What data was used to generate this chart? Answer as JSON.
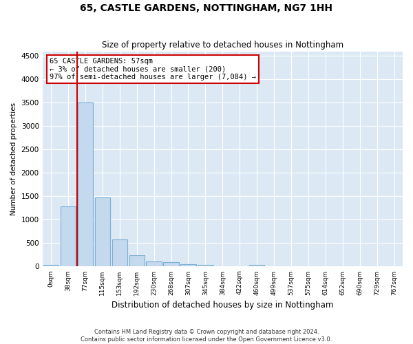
{
  "title1": "65, CASTLE GARDENS, NOTTINGHAM, NG7 1HH",
  "title2": "Size of property relative to detached houses in Nottingham",
  "xlabel": "Distribution of detached houses by size in Nottingham",
  "ylabel": "Number of detached properties",
  "bar_labels": [
    "0sqm",
    "38sqm",
    "77sqm",
    "115sqm",
    "153sqm",
    "192sqm",
    "230sqm",
    "268sqm",
    "307sqm",
    "345sqm",
    "384sqm",
    "422sqm",
    "460sqm",
    "499sqm",
    "537sqm",
    "575sqm",
    "614sqm",
    "652sqm",
    "690sqm",
    "729sqm",
    "767sqm"
  ],
  "bar_values": [
    40,
    1280,
    3500,
    1480,
    575,
    240,
    115,
    90,
    55,
    35,
    0,
    0,
    35,
    0,
    0,
    0,
    0,
    0,
    0,
    0,
    0
  ],
  "bar_color": "#c5d9ee",
  "bar_edge_color": "#7aafd4",
  "annotation_text": "65 CASTLE GARDENS: 57sqm\n← 3% of detached houses are smaller (200)\n97% of semi-detached houses are larger (7,084) →",
  "annotation_box_color": "#cc0000",
  "ylim_max": 4600,
  "yticks": [
    0,
    500,
    1000,
    1500,
    2000,
    2500,
    3000,
    3500,
    4000,
    4500
  ],
  "footer1": "Contains HM Land Registry data © Crown copyright and database right 2024.",
  "footer2": "Contains public sector information licensed under the Open Government Licence v3.0.",
  "fig_bg_color": "#ffffff",
  "plot_bg_color": "#dce9f5",
  "grid_color": "#ffffff"
}
